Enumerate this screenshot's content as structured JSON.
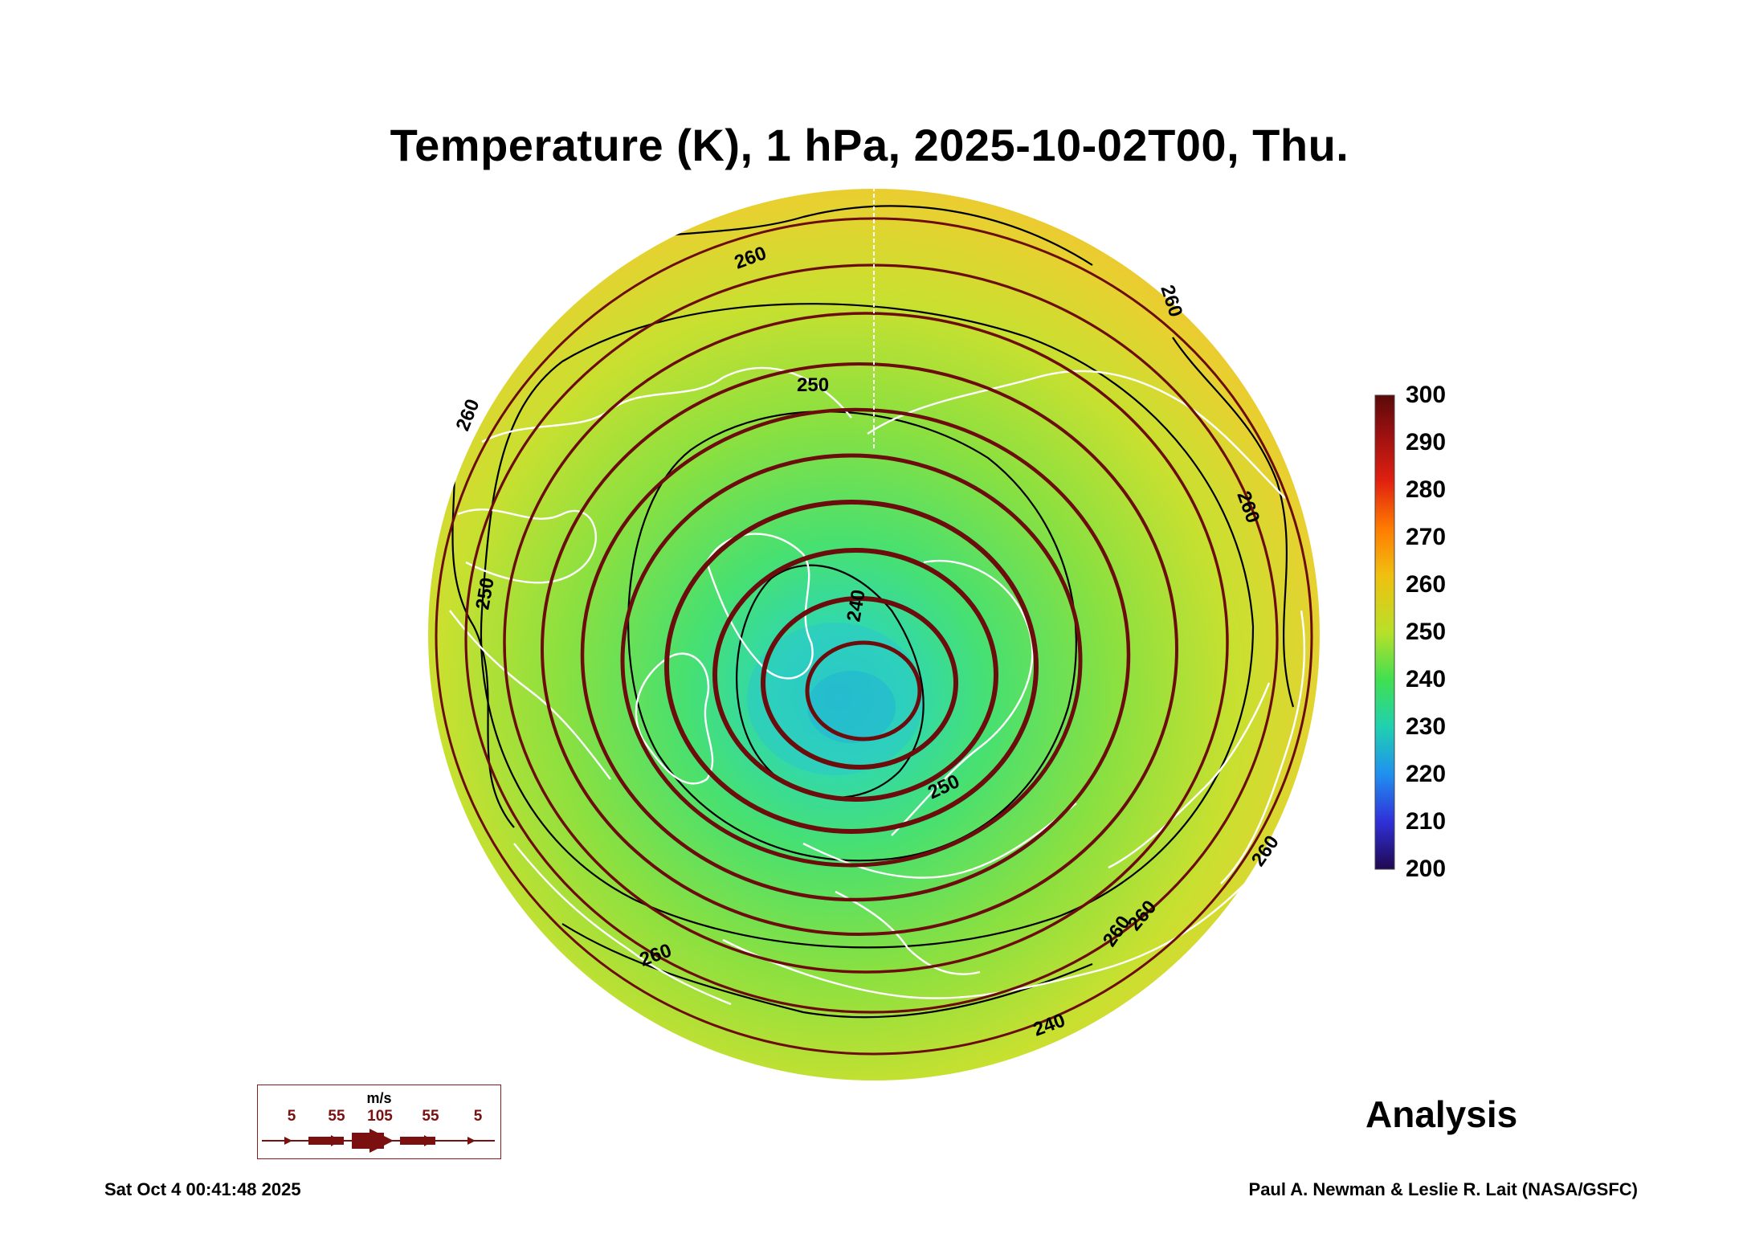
{
  "title": "Temperature (K), 1 hPa, 2025-10-02T00, Thu.",
  "analysis_label": "Analysis",
  "timestamp": "Sat Oct  4 00:41:48 2025",
  "credit": "Paul A. Newman & Leslie R. Lait (NASA/GSFC)",
  "colorbar": {
    "labels": [
      "300",
      "290",
      "280",
      "270",
      "260",
      "250",
      "240",
      "230",
      "220",
      "210",
      "200"
    ],
    "range": [
      200,
      300
    ],
    "colors": [
      "#5a0a0a",
      "#9a1010",
      "#e02010",
      "#ff6a00",
      "#f0b010",
      "#c8e028",
      "#50e050",
      "#20d8a0",
      "#20a0e8",
      "#2848e8",
      "#5010a0",
      "#200850"
    ]
  },
  "contour_labels": [
    "260",
    "260",
    "250",
    "240",
    "250",
    "260",
    "260",
    "260",
    "260",
    "260",
    "250",
    "260",
    "240"
  ],
  "wind_legend": {
    "unit": "m/s",
    "values": [
      "5",
      "55",
      "105",
      "55",
      "5"
    ]
  },
  "colors": {
    "streamline": "#6b0d0d",
    "coastline": "#ffffff",
    "contour": "#000000"
  }
}
